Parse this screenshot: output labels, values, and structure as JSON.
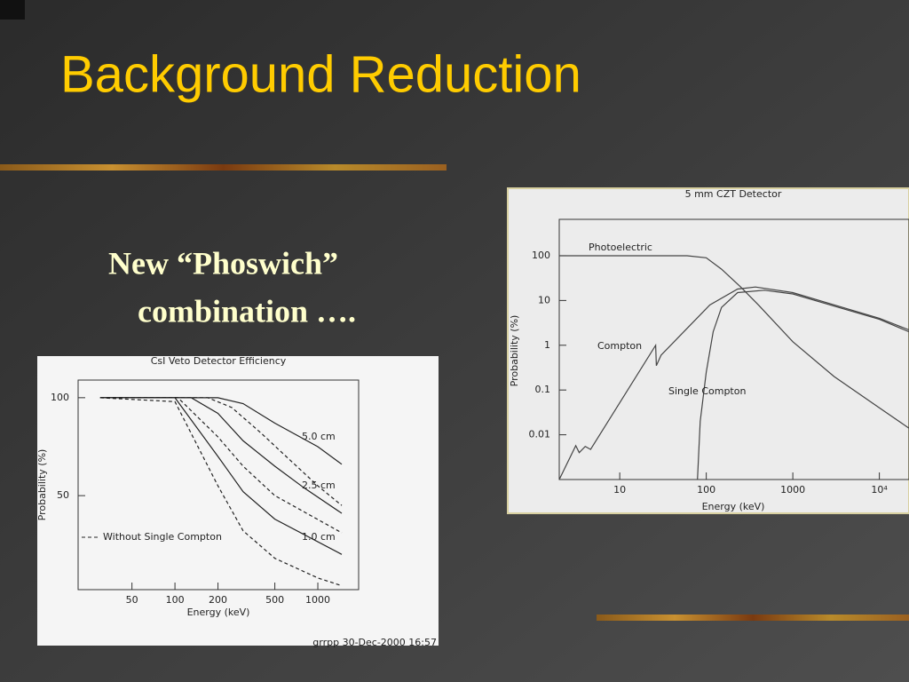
{
  "slide": {
    "title": "Background Reduction",
    "text": [
      "New “Phoswich”",
      "combination …."
    ]
  },
  "chart_data": [
    {
      "type": "line",
      "title": "CsI Veto Detector Efficiency",
      "x_label": "Energy (keV)",
      "y_label": "Probability (%)",
      "xlog": true,
      "ylog": false,
      "xlim": [
        21,
        1930
      ],
      "ylim": [
        2,
        109
      ],
      "xticks": [
        50,
        100,
        200,
        500,
        1000
      ],
      "yticks": [
        100,
        50
      ],
      "dashed_legend": "Without Single Compton",
      "footnote": "grrpp 30-Dec-2000 16:57",
      "series": [
        {
          "name": "5.0 cm",
          "color": "#222222",
          "x": [
            30,
            200,
            300,
            500,
            1000,
            1470
          ],
          "values": [
            100,
            100,
            97,
            87,
            75,
            66
          ]
        },
        {
          "name": "2.5 cm",
          "color": "#222222",
          "x": [
            30,
            130,
            200,
            300,
            500,
            800,
            1470
          ],
          "values": [
            100,
            100,
            92,
            78,
            65,
            54,
            41
          ]
        },
        {
          "name": "1.0 cm",
          "color": "#222222",
          "x": [
            30,
            100,
            200,
            300,
            500,
            1470
          ],
          "values": [
            100,
            100,
            70,
            52,
            38,
            20
          ]
        },
        {
          "color": "#222222",
          "dashed": true,
          "x": [
            30,
            170,
            250,
            400,
            600,
            1000,
            1470
          ],
          "values": [
            100,
            100,
            95,
            82,
            70,
            55,
            45
          ]
        },
        {
          "color": "#222222",
          "dashed": true,
          "x": [
            30,
            105,
            200,
            300,
            500,
            1470
          ],
          "values": [
            100,
            100,
            80,
            65,
            50,
            31
          ]
        },
        {
          "color": "#222222",
          "dashed": true,
          "x": [
            30,
            100,
            200,
            300,
            500,
            1000,
            1470
          ],
          "values": [
            100,
            98,
            55,
            32,
            18,
            8,
            4
          ]
        }
      ]
    },
    {
      "type": "line",
      "title": "5 mm CZT Detector",
      "x_label": "Energy (keV)",
      "y_label": "Probability (%)",
      "xlog": true,
      "ylog": true,
      "xlim": [
        2,
        22000
      ],
      "ylim": [
        0.001,
        650
      ],
      "xticks": [
        10,
        100,
        1000,
        {
          "value": 10000,
          "label": "10⁴"
        }
      ],
      "yticks": [
        100,
        10,
        1,
        0.1,
        0.01
      ],
      "series": [
        {
          "name": "Photoelectric",
          "color": "#444444",
          "x": [
            2,
            60,
            100,
            150,
            250,
            400,
            1000,
            3000,
            10000,
            22000
          ],
          "values": [
            100,
            100,
            90,
            50,
            20,
            8,
            1.2,
            0.2,
            0.04,
            0.014
          ]
        },
        {
          "name": "Compton",
          "color": "#444444",
          "x": [
            2,
            3.1,
            3.4,
            4,
            4.6,
            26,
            26.5,
            30,
            110,
            230,
            370,
            1000,
            3000,
            10000,
            22000
          ],
          "values": [
            0.001,
            0.0057,
            0.004,
            0.0055,
            0.0047,
            1,
            0.35,
            0.6,
            8,
            18,
            20,
            15,
            8,
            4,
            2.2
          ]
        },
        {
          "name": "Single Compton",
          "color": "#444444",
          "x": [
            79,
            85,
            100,
            120,
            150,
            230,
            470,
            1000,
            3000,
            10000,
            22000
          ],
          "values": [
            0.001,
            0.02,
            0.25,
            2,
            7,
            15,
            17,
            14,
            7.5,
            3.8,
            2.0
          ]
        }
      ]
    }
  ]
}
